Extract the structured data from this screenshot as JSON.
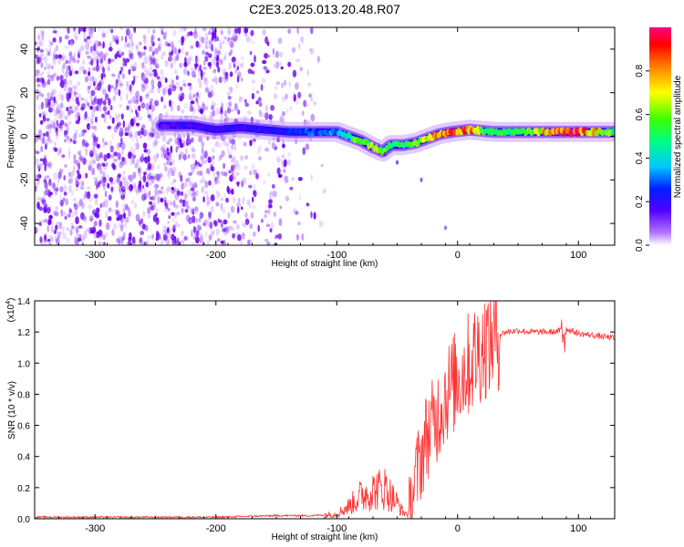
{
  "title": "C2E3.2025.013.20.48.R07",
  "chart_data": [
    {
      "type": "heatmap",
      "xlabel": "Height of straight line (km)",
      "ylabel": "Frequency (Hz)",
      "xlim": [
        -350,
        130
      ],
      "ylim": [
        -50,
        50
      ],
      "x_ticks": [
        -300,
        -200,
        -100,
        0,
        100
      ],
      "y_ticks": [
        -40,
        -20,
        0,
        20,
        40
      ],
      "colorbar": {
        "label": "Normalized spectral amplitude",
        "range": [
          0,
          1
        ],
        "ticks": [
          "0.0",
          "0.2",
          "0.4",
          "0.6",
          "0.8"
        ],
        "colors": [
          "#ffffff",
          "#6a00ff",
          "#0000ff",
          "#00ffff",
          "#00ff00",
          "#ffff00",
          "#ff0000",
          "#ff0080"
        ]
      },
      "noise_region": {
        "x": [
          -350,
          -105
        ],
        "y": [
          -50,
          50
        ],
        "amplitude": 0.1
      },
      "ridge": {
        "x": [
          -245,
          -220,
          -200,
          -180,
          -160,
          -140,
          -120,
          -100,
          -90,
          -80,
          -70,
          -62,
          -55,
          -45,
          -35,
          -25,
          -15,
          -5,
          10,
          30,
          60,
          80,
          100,
          130
        ],
        "freq": [
          5,
          5,
          3,
          4,
          3,
          2,
          2,
          2,
          0,
          -2,
          -5,
          -7,
          -4,
          -4,
          -3,
          -1,
          1,
          2,
          3,
          2,
          2,
          2,
          2,
          2
        ],
        "amplitude": [
          0.15,
          0.2,
          0.2,
          0.2,
          0.2,
          0.25,
          0.3,
          0.35,
          0.5,
          0.6,
          0.7,
          0.65,
          0.5,
          0.55,
          0.6,
          0.7,
          0.8,
          0.85,
          0.85,
          0.5,
          0.6,
          0.9,
          0.95,
          0.55
        ]
      }
    },
    {
      "type": "line",
      "xlabel": "Height of straight line (km)",
      "ylabel": "SNR (10 * v/v)",
      "scale_label_main": "(x10",
      "scale_label_exp": "4",
      "scale_label_close": ")",
      "xlim": [
        -350,
        130
      ],
      "ylim": [
        0,
        1.4
      ],
      "x_ticks": [
        -300,
        -200,
        -100,
        0,
        100
      ],
      "y_ticks": [
        "0.0",
        "0.2",
        "0.4",
        "0.6",
        "0.8",
        "1.0",
        "1.2",
        "1.4"
      ],
      "line_color": "#ff3333",
      "series": [
        {
          "x": [
            -350,
            -300,
            -250,
            -200,
            -150,
            -120,
            -100,
            -90,
            -80,
            -70,
            -60,
            -50,
            -45,
            -40,
            -35,
            -30,
            -25,
            -20,
            -15,
            -10,
            -5,
            0,
            5,
            10,
            20,
            30,
            40,
            50,
            60,
            70,
            80,
            90,
            100,
            110,
            120,
            130
          ],
          "values": [
            0.01,
            0.01,
            0.01,
            0.01,
            0.02,
            0.02,
            0.03,
            0.08,
            0.15,
            0.18,
            0.2,
            0.1,
            0.04,
            0.03,
            0.25,
            0.4,
            0.55,
            0.6,
            0.7,
            0.8,
            0.85,
            0.9,
            0.95,
            1.0,
            1.1,
            1.17,
            1.2,
            1.21,
            1.2,
            1.2,
            1.2,
            1.22,
            1.19,
            1.18,
            1.17,
            1.16
          ]
        }
      ]
    }
  ]
}
